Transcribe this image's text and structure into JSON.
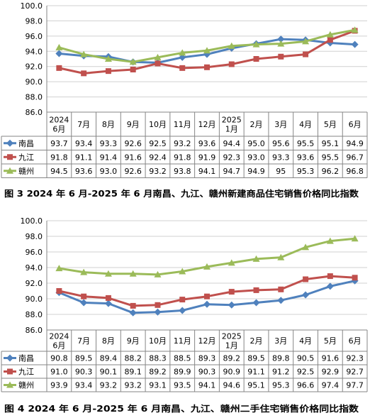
{
  "chart_data": [
    {
      "type": "line",
      "caption": "图 3 2024 年 6 月-2025 年 6 月南昌、九江、赣州新建商品住宅销售价格同比指数",
      "ylim": [
        86,
        100
      ],
      "y_ticks": [
        "86.0",
        "88.0",
        "90.0",
        "92.0",
        "94.0",
        "96.0",
        "98.0",
        "100.0"
      ],
      "grid": true,
      "legend": "data-table-left",
      "categories": [
        [
          "2024",
          "6月"
        ],
        [
          "7月"
        ],
        [
          "8月"
        ],
        [
          "9月"
        ],
        [
          "10月"
        ],
        [
          "11月"
        ],
        [
          "12月"
        ],
        [
          "2025",
          "1月"
        ],
        [
          "2月"
        ],
        [
          "3月"
        ],
        [
          "4月"
        ],
        [
          "5月"
        ],
        [
          "6月"
        ]
      ],
      "series": [
        {
          "name": "南昌",
          "color": "#4f81bd",
          "marker": "diamond",
          "values": [
            "93.7",
            "93.4",
            "93.3",
            "92.6",
            "92.5",
            "93.2",
            "93.6",
            "94.4",
            "95.0",
            "95.6",
            "95.5",
            "95.1",
            "94.9"
          ]
        },
        {
          "name": "九江",
          "color": "#c0504d",
          "marker": "square",
          "values": [
            "91.8",
            "91.1",
            "91.4",
            "91.6",
            "92.4",
            "91.8",
            "91.9",
            "92.3",
            "93.0",
            "93.3",
            "93.6",
            "95.5",
            "96.7"
          ]
        },
        {
          "name": "赣州",
          "color": "#9bbb59",
          "marker": "triangle",
          "values": [
            "94.5",
            "93.6",
            "93.0",
            "92.6",
            "93.2",
            "93.8",
            "94.1",
            "94.7",
            "94.9",
            "95",
            "95.3",
            "96.2",
            "96.8"
          ]
        }
      ]
    },
    {
      "type": "line",
      "caption": "图 4 2024 年 6 月-2025 年 6 月南昌、九江、赣州二手住宅销售价格同比指数",
      "ylim": [
        86,
        100
      ],
      "y_ticks": [
        "86.0",
        "88.0",
        "90.0",
        "92.0",
        "94.0",
        "96.0",
        "98.0",
        "100.0"
      ],
      "grid": true,
      "legend": "data-table-left",
      "categories": [
        [
          "2024",
          "6月"
        ],
        [
          "7月"
        ],
        [
          "8月"
        ],
        [
          "9月"
        ],
        [
          "10月"
        ],
        [
          "11月"
        ],
        [
          "12月"
        ],
        [
          "2025",
          "1月"
        ],
        [
          "2月"
        ],
        [
          "3月"
        ],
        [
          "4月"
        ],
        [
          "5月"
        ],
        [
          "6月"
        ]
      ],
      "series": [
        {
          "name": "南昌",
          "color": "#4f81bd",
          "marker": "diamond",
          "values": [
            "90.8",
            "89.5",
            "89.4",
            "88.2",
            "88.3",
            "88.5",
            "89.3",
            "89.2",
            "89.5",
            "89.8",
            "90.5",
            "91.6",
            "92.3"
          ]
        },
        {
          "name": "九江",
          "color": "#c0504d",
          "marker": "square",
          "values": [
            "91.0",
            "90.3",
            "90.1",
            "89.1",
            "89.2",
            "89.9",
            "90.3",
            "90.9",
            "91.1",
            "91.2",
            "92.5",
            "92.9",
            "92.7"
          ]
        },
        {
          "name": "赣州",
          "color": "#9bbb59",
          "marker": "triangle",
          "values": [
            "93.9",
            "93.4",
            "93.2",
            "93.2",
            "93.1",
            "93.5",
            "94.1",
            "94.6",
            "95.1",
            "95.3",
            "96.6",
            "97.4",
            "97.7"
          ]
        }
      ]
    }
  ]
}
